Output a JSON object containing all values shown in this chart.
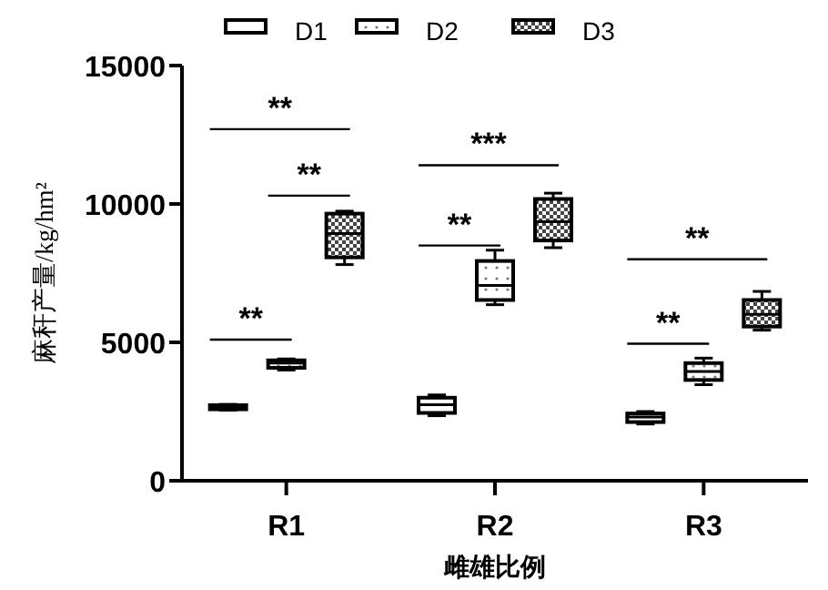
{
  "chart_data": {
    "type": "box",
    "xlabel": "雌雄比例",
    "ylabel": "麻秆产量/kg/hm²",
    "categories": [
      "R1",
      "R2",
      "R3"
    ],
    "ylim": [
      0,
      15000
    ],
    "yticks": [
      0,
      5000,
      10000,
      15000
    ],
    "legend": "top",
    "grid": false,
    "series": [
      {
        "name": "D1",
        "color": "#000000",
        "boxes": [
          {
            "low": 2550,
            "q1": 2580,
            "median": 2650,
            "q3": 2730,
            "high": 2760
          },
          {
            "low": 2350,
            "q1": 2450,
            "median": 2750,
            "q3": 3000,
            "high": 3100
          },
          {
            "low": 2050,
            "q1": 2120,
            "median": 2300,
            "q3": 2430,
            "high": 2500
          }
        ]
      },
      {
        "name": "D2",
        "color": "#000000",
        "boxes": [
          {
            "low": 4000,
            "q1": 4080,
            "median": 4250,
            "q3": 4350,
            "high": 4400
          },
          {
            "low": 6360,
            "q1": 6530,
            "median": 7060,
            "q3": 7940,
            "high": 8330
          },
          {
            "low": 3470,
            "q1": 3640,
            "median": 3950,
            "q3": 4250,
            "high": 4430
          }
        ]
      },
      {
        "name": "D3",
        "color": "#000000",
        "boxes": [
          {
            "low": 7810,
            "q1": 8070,
            "median": 8930,
            "q3": 9650,
            "high": 9740
          },
          {
            "low": 8420,
            "q1": 8680,
            "median": 9360,
            "q3": 10180,
            "high": 10390
          },
          {
            "low": 5440,
            "q1": 5570,
            "median": 6010,
            "q3": 6530,
            "high": 6840
          }
        ]
      }
    ],
    "annotations": [
      "**",
      "**",
      "**",
      "***",
      "**",
      "**",
      "**"
    ]
  }
}
